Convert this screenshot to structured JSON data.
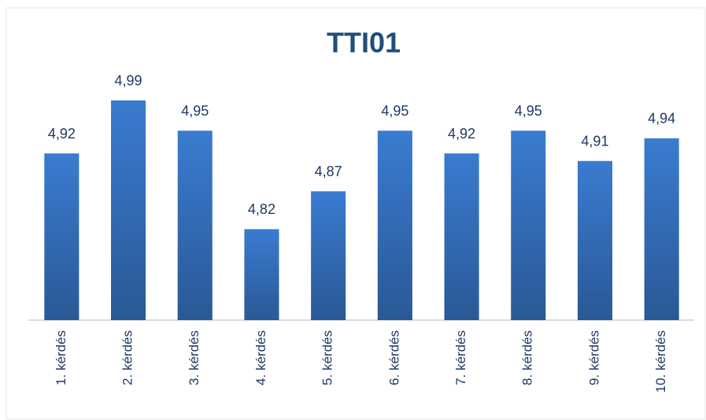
{
  "chart_data": {
    "type": "bar",
    "title": "TTI01",
    "categories": [
      "1. kérdés",
      "2. kérdés",
      "3. kérdés",
      "4. kérdés",
      "5. kérdés",
      "6. kérdés",
      "7. kérdés",
      "8. kérdés",
      "9. kérdés",
      "10. kérdés"
    ],
    "values": [
      4.92,
      4.99,
      4.95,
      4.82,
      4.87,
      4.95,
      4.92,
      4.95,
      4.91,
      4.94
    ],
    "value_labels": [
      "4,92",
      "4,99",
      "4,95",
      "4,82",
      "4,87",
      "4,95",
      "4,92",
      "4,95",
      "4,91",
      "4,94"
    ],
    "color": "#3a7bd0",
    "ylim": [
      4.7,
      5.0
    ]
  }
}
